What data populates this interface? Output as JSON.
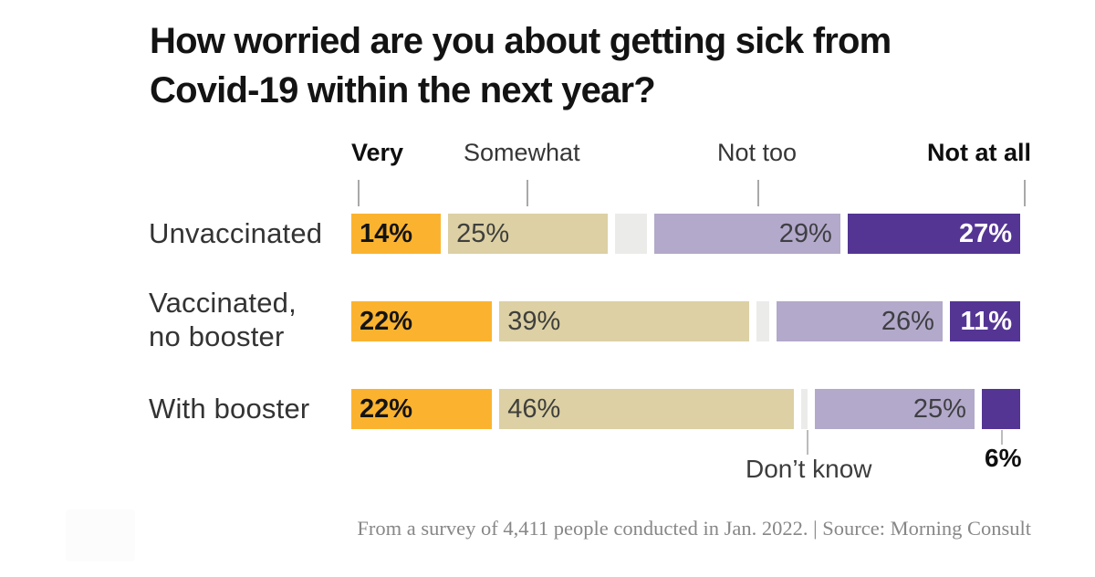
{
  "chart": {
    "title_line1": "How worried are you about getting sick from",
    "title_line2": "Covid-19 within the next year?",
    "column_headers": {
      "very": "Very",
      "somewhat": "Somewhat",
      "not_too": "Not too",
      "not_at_all": "Not at all"
    },
    "footnote": "From a survey of 4,411 people conducted in Jan. 2022. | Source: Morning Consult"
  },
  "chart_data": {
    "type": "bar",
    "orientation": "horizontal-stacked",
    "unit": "percent",
    "title": "How worried are you about getting sick from Covid-19 within the next year?",
    "categories": [
      "Unvaccinated",
      "Vaccinated, no booster",
      "With booster"
    ],
    "series": [
      {
        "name": "Very",
        "color": "#FBB32F",
        "values": [
          14,
          22,
          22
        ]
      },
      {
        "name": "Somewhat",
        "color": "#DCD0A4",
        "values": [
          25,
          39,
          46
        ]
      },
      {
        "name": "Don't know",
        "color": "#EBEBE9",
        "values": [
          5,
          2,
          1
        ]
      },
      {
        "name": "Not too",
        "color": "#B3A9CA",
        "values": [
          29,
          26,
          25
        ]
      },
      {
        "name": "Not at all",
        "color": "#543594",
        "values": [
          27,
          11,
          6
        ]
      }
    ],
    "xlim": [
      0,
      100
    ],
    "value_labels_shown": true,
    "legend_position": "top-as-column-headers",
    "source": "Morning Consult"
  },
  "rows": [
    {
      "label_line1": "Unvaccinated",
      "label_line2": "",
      "segments": [
        {
          "key": "very",
          "pct": 14,
          "label": "14%"
        },
        {
          "key": "somewhat",
          "pct": 25,
          "label": "25%"
        },
        {
          "key": "dontknow",
          "pct": 5,
          "label": ""
        },
        {
          "key": "nottoo",
          "pct": 29,
          "label": "29%"
        },
        {
          "key": "notatall",
          "pct": 27,
          "label": "27%"
        }
      ]
    },
    {
      "label_line1": "Vaccinated,",
      "label_line2": "no booster",
      "segments": [
        {
          "key": "very",
          "pct": 22,
          "label": "22%"
        },
        {
          "key": "somewhat",
          "pct": 39,
          "label": "39%"
        },
        {
          "key": "dontknow",
          "pct": 2,
          "label": ""
        },
        {
          "key": "nottoo",
          "pct": 26,
          "label": "26%"
        },
        {
          "key": "notatall",
          "pct": 11,
          "label": "11%"
        }
      ]
    },
    {
      "label_line1": "With booster",
      "label_line2": "",
      "segments": [
        {
          "key": "very",
          "pct": 22,
          "label": "22%"
        },
        {
          "key": "somewhat",
          "pct": 46,
          "label": "46%"
        },
        {
          "key": "dontknow",
          "pct": 1,
          "label": ""
        },
        {
          "key": "nottoo",
          "pct": 25,
          "label": "25%"
        },
        {
          "key": "notatall",
          "pct": 6,
          "label": ""
        }
      ]
    }
  ],
  "annotations": {
    "dont_know_label": "Don’t know",
    "booster_not_at_all_label": "6%"
  },
  "colors": {
    "very": "#FBB32F",
    "somewhat": "#DCD0A4",
    "dontknow": "#EBEBE9",
    "nottoo": "#B3A9CA",
    "notatall": "#543594",
    "title_text": "#131313",
    "body_text": "#3d3d3d",
    "footnote_text": "#878787"
  }
}
